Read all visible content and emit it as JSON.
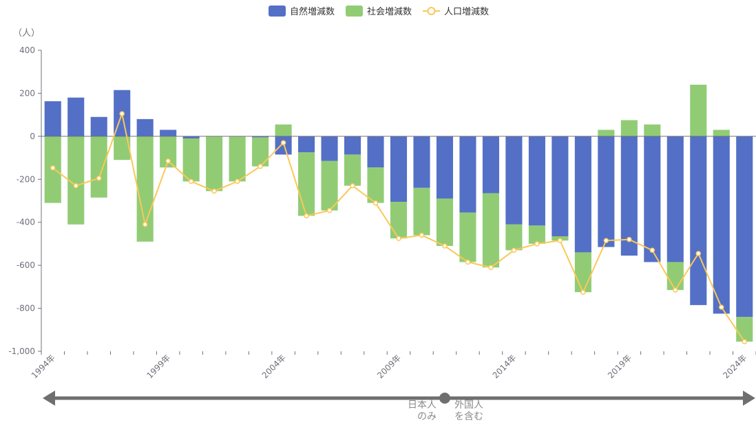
{
  "chart_data": {
    "type": "bar",
    "stacked": true,
    "unit_label": "（人）",
    "ylim": [
      -1000,
      400
    ],
    "yticks": [
      400,
      200,
      0,
      -200,
      -400,
      -600,
      -800,
      -1000
    ],
    "ytick_labels": [
      "400",
      "200",
      "0",
      "-200",
      "-400",
      "-600",
      "-800",
      "-1,000"
    ],
    "categories": [
      "1994年",
      "1995年",
      "1996年",
      "1997年",
      "1998年",
      "1999年",
      "2000年",
      "2001年",
      "2002年",
      "2003年",
      "2004年",
      "2005年",
      "2006年",
      "2007年",
      "2008年",
      "2009年",
      "2010年",
      "2011年",
      "2012年",
      "2013年",
      "2014年",
      "2015年",
      "2016年",
      "2017年",
      "2018年",
      "2019年",
      "2020年",
      "2021年",
      "2022年",
      "2023年",
      "2024年"
    ],
    "labeled_ticks": [
      "1994年",
      "1999年",
      "2004年",
      "2009年",
      "2014年",
      "2019年",
      "2024年"
    ],
    "series": [
      {
        "name": "自然増減数",
        "type": "bar",
        "color": "#5470c6",
        "values": [
          163,
          180,
          90,
          215,
          80,
          30,
          -10,
          0,
          0,
          -5,
          -85,
          -75,
          -115,
          -85,
          -145,
          -305,
          -240,
          -290,
          -355,
          -265,
          -410,
          -415,
          -465,
          -540,
          -515,
          -555,
          -585,
          -585,
          -785,
          -825,
          -840
        ]
      },
      {
        "name": "社会増減数",
        "type": "bar",
        "color": "#91cc75",
        "values": [
          -310,
          -410,
          -285,
          -110,
          -490,
          -145,
          -200,
          -255,
          -210,
          -135,
          55,
          -295,
          -230,
          -145,
          -165,
          -170,
          -220,
          -220,
          -230,
          -345,
          -120,
          -85,
          -20,
          -185,
          30,
          75,
          55,
          -130,
          240,
          30,
          -115
        ]
      },
      {
        "name": "人口増減数",
        "type": "line",
        "color": "#fac858",
        "values": [
          -147,
          -230,
          -195,
          105,
          -410,
          -115,
          -210,
          -255,
          -210,
          -140,
          -30,
          -370,
          -345,
          -230,
          -310,
          -475,
          -460,
          -510,
          -585,
          -610,
          -530,
          -500,
          -485,
          -725,
          -485,
          -480,
          -530,
          -715,
          -545,
          -795,
          -955
        ]
      }
    ],
    "legend_position": "top-center",
    "grid": false,
    "annotation": {
      "left_label": "日本人\nのみ",
      "right_label": "外国人\nを含む"
    }
  }
}
